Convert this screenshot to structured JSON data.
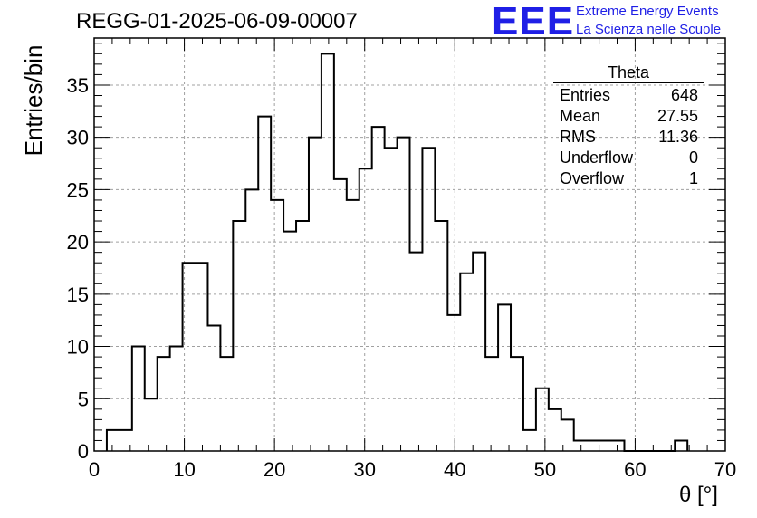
{
  "header": {
    "run_title": "REGG-01-2025-06-09-00007",
    "logo_text": "EEE",
    "logo_line1": "Extreme Energy Events",
    "logo_line2": "La Scienza nelle Scuole"
  },
  "stats_box": {
    "title": "Theta",
    "rows": [
      {
        "label": "Entries",
        "value": "648"
      },
      {
        "label": "Mean",
        "value": "27.55"
      },
      {
        "label": "RMS",
        "value": "11.36"
      },
      {
        "label": "Underflow",
        "value": "0"
      },
      {
        "label": "Overflow",
        "value": "1"
      }
    ]
  },
  "colors": {
    "logo": "#1f1fe6",
    "histogram": "#000000",
    "grid": "#a0a0a0"
  },
  "chart_data": {
    "type": "bar",
    "histogram": "step",
    "bin_width": 1.4,
    "bin_edges_start": 1.4,
    "counts": [
      2,
      2,
      10,
      5,
      9,
      10,
      18,
      18,
      12,
      9,
      22,
      25,
      32,
      24,
      21,
      22,
      30,
      38,
      26,
      24,
      27,
      31,
      29,
      30,
      19,
      29,
      22,
      13,
      17,
      19,
      9,
      14,
      9,
      2,
      6,
      4,
      3,
      1,
      1,
      1,
      1,
      0,
      0,
      0,
      0,
      1
    ],
    "xlabel": "θ [°]",
    "ylabel": "Entries/bin",
    "xlim": [
      0,
      70
    ],
    "ylim": [
      0,
      39.5
    ],
    "xticks": [
      0,
      10,
      20,
      30,
      40,
      50,
      60,
      70
    ],
    "yticks": [
      0,
      5,
      10,
      15,
      20,
      25,
      30,
      35
    ],
    "grid": true,
    "legend": "top-right stats box"
  }
}
